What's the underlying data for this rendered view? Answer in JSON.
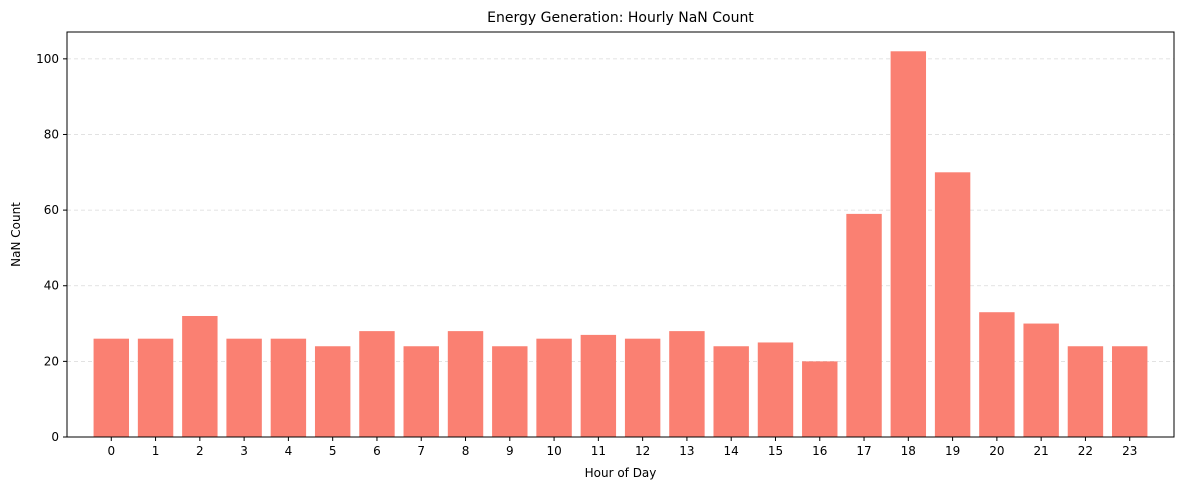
{
  "chart_data": {
    "type": "bar",
    "title": "Energy Generation: Hourly NaN Count",
    "xlabel": "Hour of Day",
    "ylabel": "NaN Count",
    "categories": [
      "0",
      "1",
      "2",
      "3",
      "4",
      "5",
      "6",
      "7",
      "8",
      "9",
      "10",
      "11",
      "12",
      "13",
      "14",
      "15",
      "16",
      "17",
      "18",
      "19",
      "20",
      "21",
      "22",
      "23"
    ],
    "values": [
      26,
      26,
      32,
      26,
      26,
      24,
      28,
      24,
      28,
      24,
      26,
      27,
      26,
      28,
      24,
      25,
      20,
      59,
      102,
      70,
      33,
      30,
      24,
      24
    ],
    "ylim": [
      0,
      107.1
    ],
    "yticks": [
      0,
      20,
      40,
      60,
      80,
      100
    ],
    "grid": "y-dashed",
    "bar_color": "#fa8072"
  }
}
